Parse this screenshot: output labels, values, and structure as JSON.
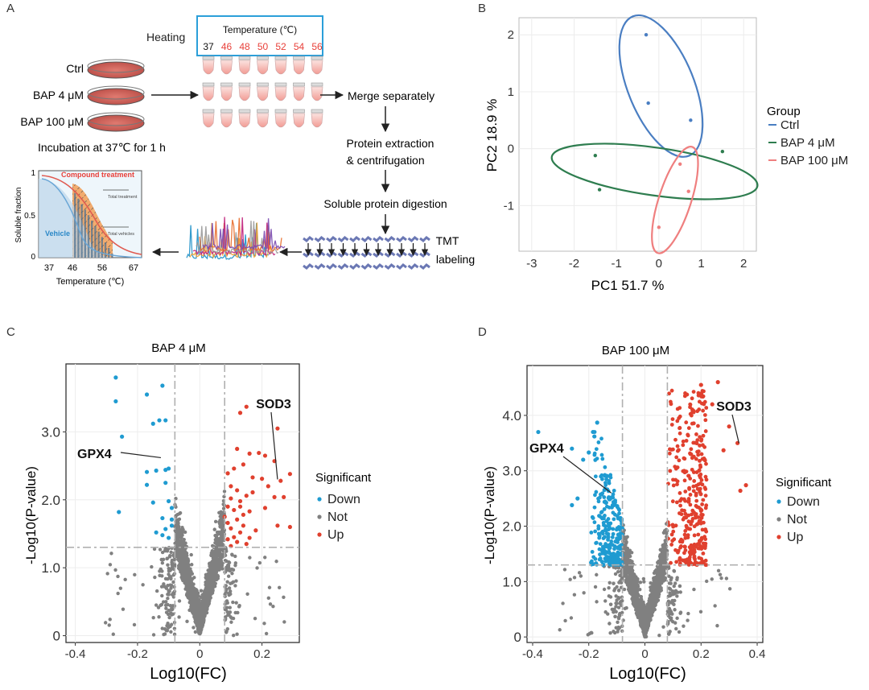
{
  "panels": {
    "a": "A",
    "b": "B",
    "c": "C",
    "d": "D"
  },
  "workflow": {
    "heating": "Heating",
    "temperature_title": "Temperature (℃)",
    "temperatures": [
      "37",
      "46",
      "48",
      "50",
      "52",
      "54",
      "56"
    ],
    "samples": [
      "Ctrl",
      "BAP 4 μM",
      "BAP 100 μM"
    ],
    "incubation": "Incubation at 37℃  for 1 h",
    "steps": [
      "Merge separately",
      "Protein extraction",
      "& centrifugation",
      "Soluble protein digestion",
      "TMT",
      "labeling"
    ],
    "melt_curve": {
      "ylabel": "Soluble fraction",
      "xlabel": "Temperature (℃)",
      "xticks": [
        "37",
        "46",
        "56",
        "67"
      ],
      "yticks": [
        "1",
        "0.5",
        "0"
      ],
      "compound_label": "Compound treatment",
      "vehicle_label": "Vehicle",
      "note_top": "Total treatment",
      "note_bottom": "Total vehicles"
    },
    "colors": {
      "heating_box": "#2b9fd9",
      "hot_temp": "#e8403a",
      "dish": "#c0504d",
      "tmt": "#6b78b4"
    }
  },
  "chart_data": [
    {
      "id": "pca",
      "type": "scatter",
      "xlabel": "PC1 51.7 %",
      "ylabel": "PC2 18.9 %",
      "xlim": [
        -3.3,
        2.3
      ],
      "ylim": [
        -1.8,
        2.3
      ],
      "xticks": [
        -3,
        -2,
        -1,
        0,
        1,
        2
      ],
      "yticks": [
        2,
        1,
        0,
        -1
      ],
      "legend_title": "Group",
      "series": [
        {
          "name": "Ctrl",
          "color": "#4a7ec2",
          "points": [
            [
              -0.3,
              2.0
            ],
            [
              -0.25,
              0.8
            ],
            [
              0.75,
              0.5
            ]
          ],
          "ellipse": {
            "cx": 0.05,
            "cy": 1.1,
            "rx": 0.78,
            "ry": 1.32,
            "angle_deg": -22
          }
        },
        {
          "name": "BAP 4 μM",
          "color": "#2e7d4f",
          "points": [
            [
              -1.5,
              -0.12
            ],
            [
              -1.4,
              -0.72
            ],
            [
              1.5,
              -0.05
            ]
          ],
          "ellipse": {
            "cx": -0.1,
            "cy": -0.4,
            "rx": 2.45,
            "ry": 0.42,
            "angle_deg": 8
          }
        },
        {
          "name": "BAP 100 μM",
          "color": "#ef7f7f",
          "points": [
            [
              0.5,
              -0.27
            ],
            [
              0.7,
              -0.75
            ],
            [
              0.0,
              -1.38
            ]
          ],
          "ellipse": {
            "cx": 0.38,
            "cy": -0.9,
            "rx": 0.38,
            "ry": 0.98,
            "angle_deg": 18
          }
        }
      ]
    },
    {
      "id": "volcano-4",
      "type": "scatter",
      "title": "BAP 4 μM",
      "xlabel": "Log10(FC)",
      "ylabel": "-Log10(P-value)",
      "xlim": [
        -0.43,
        0.32
      ],
      "ylim": [
        -0.1,
        4.0
      ],
      "xticks": [
        -0.4,
        -0.2,
        0.0,
        0.2
      ],
      "xtick_labels": [
        "-0.4",
        "-0.2",
        "0",
        "0.2"
      ],
      "yticks": [
        0,
        1.0,
        2.0,
        3.0
      ],
      "ytick_labels": [
        "0",
        "1.0",
        "2.0",
        "3.0"
      ],
      "fc_cutoff": [
        -0.08,
        0.08
      ],
      "p_cutoff": 1.3,
      "legend_title": "Significant",
      "legend": [
        "Down",
        "Not",
        "Up"
      ],
      "colors": {
        "Down": "#1f9bd1",
        "Not": "#808080",
        "Up": "#e0402e"
      },
      "down_points": [
        [
          -0.27,
          3.8
        ],
        [
          -0.27,
          3.45
        ],
        [
          -0.25,
          2.93
        ],
        [
          -0.26,
          1.82
        ],
        [
          -0.17,
          3.55
        ],
        [
          -0.12,
          3.68
        ],
        [
          -0.13,
          3.17
        ],
        [
          -0.15,
          3.12
        ],
        [
          -0.11,
          3.17
        ],
        [
          -0.11,
          2.44
        ],
        [
          -0.17,
          2.41
        ],
        [
          -0.14,
          2.43
        ],
        [
          -0.1,
          2.46
        ],
        [
          -0.11,
          2.25
        ],
        [
          -0.17,
          2.22
        ],
        [
          -0.15,
          1.96
        ],
        [
          -0.1,
          1.98
        ],
        [
          -0.12,
          1.73
        ],
        [
          -0.09,
          1.88
        ],
        [
          -0.14,
          1.52
        ],
        [
          -0.11,
          1.57
        ],
        [
          -0.09,
          1.62
        ],
        [
          -0.1,
          1.44
        ],
        [
          -0.12,
          1.48
        ],
        [
          -0.09,
          1.71
        ]
      ],
      "up_points": [
        [
          0.13,
          3.28
        ],
        [
          0.15,
          3.37
        ],
        [
          0.25,
          3.05
        ],
        [
          0.24,
          2.57
        ],
        [
          0.26,
          2.28
        ],
        [
          0.29,
          2.38
        ],
        [
          0.19,
          2.69
        ],
        [
          0.21,
          2.65
        ],
        [
          0.16,
          2.68
        ],
        [
          0.12,
          2.75
        ],
        [
          0.14,
          2.52
        ],
        [
          0.09,
          2.39
        ],
        [
          0.11,
          2.46
        ],
        [
          0.17,
          2.33
        ],
        [
          0.2,
          2.31
        ],
        [
          0.22,
          2.2
        ],
        [
          0.24,
          2.04
        ],
        [
          0.27,
          2.04
        ],
        [
          0.21,
          1.88
        ],
        [
          0.16,
          1.83
        ],
        [
          0.25,
          1.62
        ],
        [
          0.29,
          1.6
        ],
        [
          0.1,
          2.2
        ],
        [
          0.12,
          2.14
        ],
        [
          0.1,
          2.02
        ],
        [
          0.13,
          1.98
        ],
        [
          0.09,
          1.9
        ],
        [
          0.11,
          1.85
        ],
        [
          0.14,
          1.78
        ],
        [
          0.12,
          1.71
        ],
        [
          0.09,
          1.66
        ],
        [
          0.1,
          1.58
        ],
        [
          0.13,
          1.52
        ],
        [
          0.11,
          1.45
        ],
        [
          0.09,
          1.42
        ],
        [
          0.12,
          1.38
        ],
        [
          0.15,
          1.35
        ],
        [
          0.1,
          1.32
        ],
        [
          0.14,
          1.62
        ],
        [
          0.16,
          1.44
        ],
        [
          0.13,
          1.9
        ],
        [
          0.15,
          2.06
        ],
        [
          0.18,
          1.55
        ],
        [
          0.08,
          1.75
        ],
        [
          0.17,
          2.11
        ]
      ],
      "annotations": [
        {
          "label": "SOD3",
          "point": [
            0.25,
            2.3
          ]
        },
        {
          "label": "GPX4",
          "point": [
            -0.125,
            2.62
          ]
        }
      ]
    },
    {
      "id": "volcano-100",
      "type": "scatter",
      "title": "BAP 100 μM",
      "xlabel": "Log10(FC)",
      "ylabel": "-Log10(P-value)",
      "xlim": [
        -0.42,
        0.42
      ],
      "ylim": [
        -0.1,
        4.9
      ],
      "xticks": [
        -0.4,
        -0.2,
        0.0,
        0.2,
        0.4
      ],
      "xtick_labels": [
        "-0.4",
        "-0.2",
        "0",
        "0.2",
        "0.4"
      ],
      "yticks": [
        0,
        1.0,
        2.0,
        3.0,
        4.0
      ],
      "ytick_labels": [
        "0",
        "1.0",
        "2.0",
        "3.0",
        "4.0"
      ],
      "fc_cutoff": [
        -0.08,
        0.08
      ],
      "p_cutoff": 1.3,
      "legend_title": "Significant",
      "legend": [
        "Down",
        "Not",
        "Up"
      ],
      "colors": {
        "Down": "#1f9bd1",
        "Not": "#808080",
        "Up": "#e0402e"
      },
      "down_points": [
        [
          -0.38,
          3.7
        ],
        [
          -0.26,
          3.4
        ],
        [
          -0.17,
          3.87
        ],
        [
          -0.18,
          3.62
        ],
        [
          -0.22,
          3.2
        ],
        [
          -0.24,
          2.5
        ],
        [
          -0.26,
          2.38
        ],
        [
          -0.2,
          3.33
        ]
      ],
      "up_points": [
        [
          0.2,
          4.55
        ],
        [
          0.24,
          4.2
        ],
        [
          0.26,
          4.6
        ],
        [
          0.3,
          3.8
        ],
        [
          0.28,
          3.37
        ],
        [
          0.36,
          2.74
        ],
        [
          0.34,
          2.64
        ],
        [
          0.33,
          3.5
        ]
      ],
      "down_band": {
        "x": [
          -0.2,
          -0.08
        ],
        "y": [
          1.3,
          3.7
        ],
        "n": 260
      },
      "up_band": {
        "x": [
          0.08,
          0.22
        ],
        "y": [
          1.3,
          4.45
        ],
        "n": 320
      },
      "annotations": [
        {
          "label": "SOD3",
          "point": [
            0.335,
            3.5
          ]
        },
        {
          "label": "GPX4",
          "point": [
            -0.12,
            2.6
          ]
        }
      ]
    }
  ]
}
